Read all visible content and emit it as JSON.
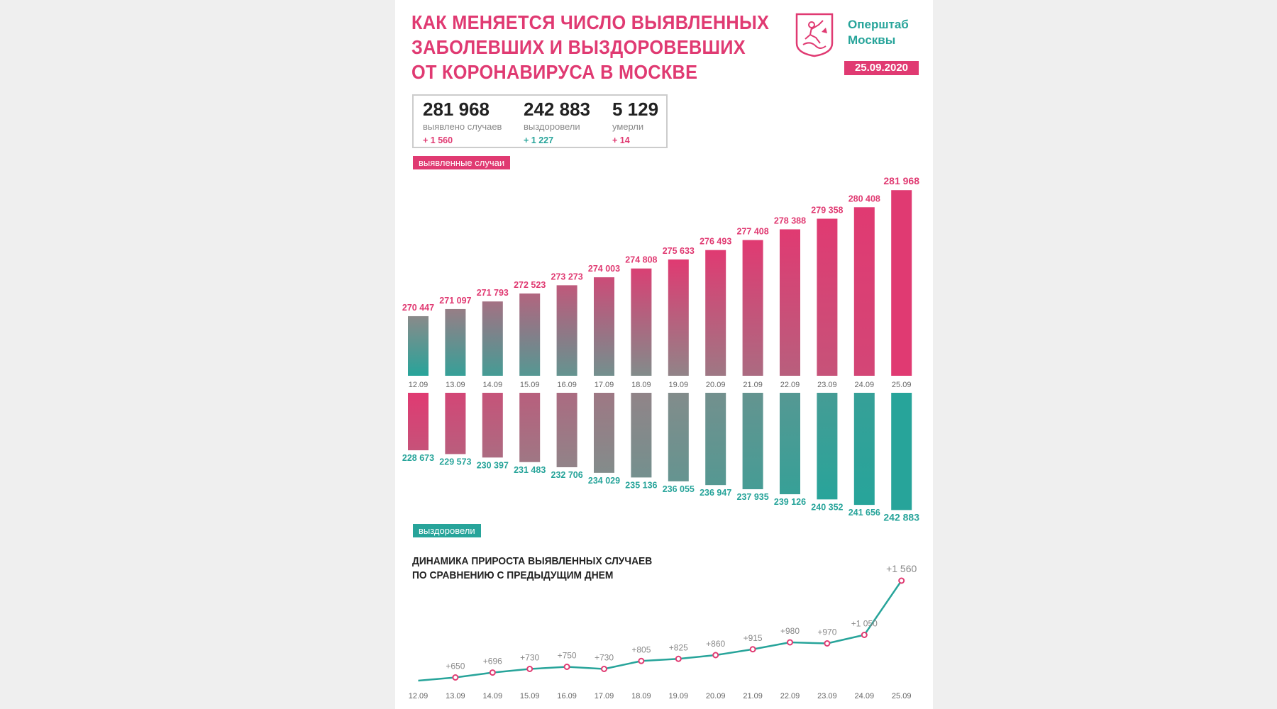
{
  "header": {
    "title_lines": [
      "КАК МЕНЯЕТСЯ ЧИСЛО ВЫЯВЛЕННЫХ",
      "ЗАБОЛЕВШИХ И ВЫЗДОРОВЕВШИХ",
      "ОТ КОРОНАВИРУСА В МОСКВЕ"
    ],
    "org_line1": "Оперштаб",
    "org_line2": "Москвы",
    "date": "25.09.2020",
    "logo_icon": "moscow-coat-of-arms-icon"
  },
  "stats": {
    "cases": {
      "value": "281 968",
      "label": "выявлено случаев",
      "delta": "+ 1 560"
    },
    "recovered": {
      "value": "242 883",
      "label": "выздоровели",
      "delta": "+ 1 227"
    },
    "deaths": {
      "value": "5 129",
      "label": "умерли",
      "delta": "+ 14"
    }
  },
  "colors": {
    "pink": "#e03a72",
    "teal": "#27a49a",
    "gray": "#8a8a8a"
  },
  "chart_data": [
    {
      "type": "bar",
      "tag": "выявленные случаи",
      "categories": [
        "12.09",
        "13.09",
        "14.09",
        "15.09",
        "16.09",
        "17.09",
        "18.09",
        "19.09",
        "20.09",
        "21.09",
        "22.09",
        "23.09",
        "24.09",
        "25.09"
      ],
      "values": [
        270447,
        271097,
        271793,
        272523,
        273273,
        274003,
        274808,
        275633,
        276493,
        277408,
        278388,
        279358,
        280408,
        281968
      ],
      "labels": [
        "270 447",
        "271 097",
        "271 793",
        "272 523",
        "273 273",
        "274 003",
        "274 808",
        "275 633",
        "276 493",
        "277 408",
        "278 388",
        "279 358",
        "280 408",
        "281 968"
      ]
    },
    {
      "type": "bar",
      "tag": "выздоровели",
      "categories": [
        "12.09",
        "13.09",
        "14.09",
        "15.09",
        "16.09",
        "17.09",
        "18.09",
        "19.09",
        "20.09",
        "21.09",
        "22.09",
        "23.09",
        "24.09",
        "25.09"
      ],
      "values": [
        228673,
        229573,
        230397,
        231483,
        232706,
        234029,
        235136,
        236055,
        236947,
        237935,
        239126,
        240352,
        241656,
        242883
      ],
      "labels": [
        "228 673",
        "229 573",
        "230 397",
        "231 483",
        "232 706",
        "234 029",
        "235 136",
        "236 055",
        "236 947",
        "237 935",
        "239 126",
        "240 352",
        "241 656",
        "242 883"
      ]
    },
    {
      "type": "line",
      "title_lines": [
        "ДИНАМИКА ПРИРОСТА ВЫЯВЛЕННЫХ СЛУЧАЕВ",
        "ПО СРАВНЕНИЮ С ПРЕДЫДУЩИМ ДНЕМ"
      ],
      "categories": [
        "12.09",
        "13.09",
        "14.09",
        "15.09",
        "16.09",
        "17.09",
        "18.09",
        "19.09",
        "20.09",
        "21.09",
        "22.09",
        "23.09",
        "24.09",
        "25.09"
      ],
      "values": [
        null,
        650,
        696,
        730,
        750,
        730,
        805,
        825,
        860,
        915,
        980,
        970,
        1050,
        1560
      ],
      "labels": [
        "",
        "+650",
        "+696",
        "+730",
        "+750",
        "+730",
        "+805",
        "+825",
        "+860",
        "+915",
        "+980",
        "+970",
        "+1 050",
        "+1 560"
      ]
    }
  ]
}
